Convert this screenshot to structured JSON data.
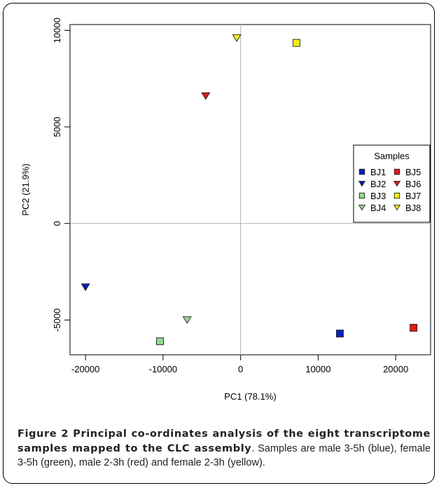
{
  "chart_data": {
    "type": "scatter",
    "xlabel": "PC1 (78.1%)",
    "ylabel": "PC2 (21.9%)",
    "xlim": [
      -22000,
      24500
    ],
    "ylim": [
      -6800,
      10300
    ],
    "xticks": [
      -20000,
      -10000,
      0,
      10000,
      20000
    ],
    "yticks": [
      -5000,
      0,
      5000,
      10000
    ],
    "reference_lines": {
      "x": 0,
      "y": 0
    },
    "grid": false,
    "legend": {
      "title": "Samples",
      "position": "right",
      "columns": 2
    },
    "series": [
      {
        "name": "BJ1",
        "marker": "square",
        "color": "#0a1fb8",
        "x": 12800,
        "y": -5700
      },
      {
        "name": "BJ2",
        "marker": "triangle-down",
        "color": "#0a1fb8",
        "x": -20000,
        "y": -3300
      },
      {
        "name": "BJ3",
        "marker": "square",
        "color": "#8fdb8a",
        "x": -10400,
        "y": -6100
      },
      {
        "name": "BJ4",
        "marker": "triangle-down",
        "color": "#8fdb8a",
        "x": -6900,
        "y": -5000
      },
      {
        "name": "BJ5",
        "marker": "square",
        "color": "#e01818",
        "x": 22300,
        "y": -5400
      },
      {
        "name": "BJ6",
        "marker": "triangle-down",
        "color": "#e01818",
        "x": -4500,
        "y": 6600
      },
      {
        "name": "BJ7",
        "marker": "square",
        "color": "#f2ee1a",
        "x": 7200,
        "y": 9350
      },
      {
        "name": "BJ8",
        "marker": "triangle-down",
        "color": "#f2ee1a",
        "x": -500,
        "y": 9600
      }
    ],
    "legend_order": [
      [
        "BJ1",
        "BJ5"
      ],
      [
        "BJ2",
        "BJ6"
      ],
      [
        "BJ3",
        "BJ7"
      ],
      [
        "BJ4",
        "BJ8"
      ]
    ]
  },
  "caption": {
    "label": "Figure 2 Principal co-ordinates analysis of the eight transcriptome samples mapped to the CLC assembly",
    "text": ". Samples are male 3-5h (blue), female 3-5h (green), male 2-3h (red) and female 2-3h (yellow)."
  }
}
